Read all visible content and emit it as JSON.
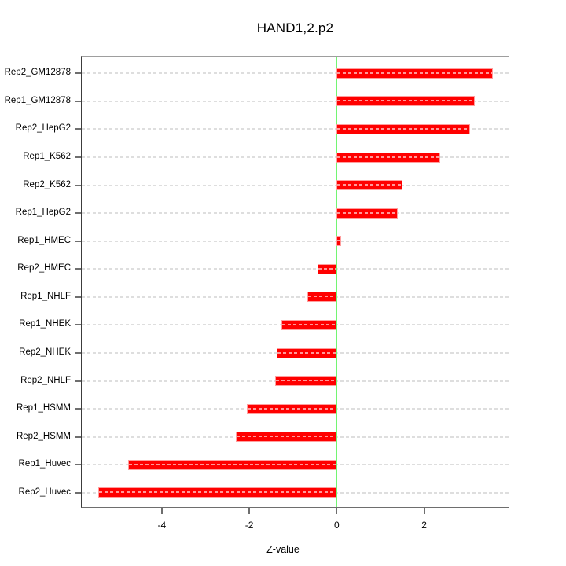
{
  "chart_data": {
    "type": "bar",
    "orientation": "horizontal",
    "title": "HAND1,2.p2",
    "xlabel": "Z-value",
    "ylabel": "",
    "categories": [
      "Rep2_GM12878",
      "Rep1_GM12878",
      "Rep2_HepG2",
      "Rep1_K562",
      "Rep2_K562",
      "Rep1_HepG2",
      "Rep1_HMEC",
      "Rep2_HMEC",
      "Rep1_NHLF",
      "Rep1_NHEK",
      "Rep2_NHEK",
      "Rep2_NHLF",
      "Rep1_HSMM",
      "Rep2_HSMM",
      "Rep1_Huvec",
      "Rep2_Huvec"
    ],
    "values": [
      3.57,
      3.15,
      3.05,
      2.37,
      1.5,
      1.39,
      0.11,
      -0.44,
      -0.67,
      -1.26,
      -1.38,
      -1.41,
      -2.06,
      -2.3,
      -4.77,
      -5.46
    ],
    "xticks": [
      -4,
      -2,
      0,
      2
    ],
    "xlim": [
      -5.83,
      3.93
    ],
    "grid": true,
    "grid_style": "dashed-horizontal",
    "legend": false,
    "bar_color": "#ff0000",
    "bar_border_color": "#ff9e9e",
    "zero_line_color": "#72f572",
    "grid_color": "#dedede",
    "background_color": "#ffffff"
  }
}
